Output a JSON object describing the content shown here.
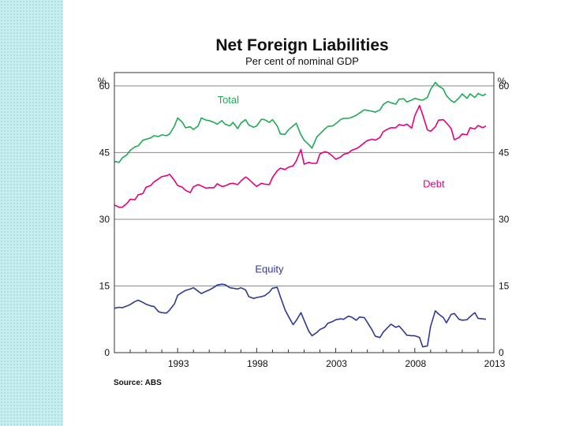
{
  "chart_data": {
    "type": "line",
    "title": "Net Foreign Liabilities",
    "subtitle": "Per cent of nominal GDP",
    "ylabel_left": "%",
    "ylabel_right": "%",
    "ylim": [
      0,
      63
    ],
    "yticks": [
      0,
      15,
      30,
      45,
      60
    ],
    "xlim": [
      1989.0,
      2013.0
    ],
    "xticks": [
      1993,
      1998,
      2003,
      2008,
      2013
    ],
    "grid": true,
    "source": "Source: ABS",
    "colors": {
      "Total": "#1faa55",
      "Debt": "#e6007e",
      "Equity": "#2e3a96"
    },
    "series": [
      {
        "name": "Total",
        "color": "#1faa55",
        "x": [
          1989.0,
          1989.3,
          1989.5,
          1989.8,
          1990.0,
          1990.3,
          1990.5,
          1990.8,
          1991.0,
          1991.3,
          1991.5,
          1991.8,
          1992.0,
          1992.3,
          1992.5,
          1992.8,
          1993.0,
          1993.3,
          1993.5,
          1993.8,
          1994.0,
          1994.3,
          1994.5,
          1994.8,
          1995.0,
          1995.3,
          1995.5,
          1995.8,
          1996.0,
          1996.3,
          1996.5,
          1996.8,
          1997.0,
          1997.3,
          1997.5,
          1997.8,
          1998.0,
          1998.3,
          1998.5,
          1998.8,
          1999.0,
          1999.3,
          1999.5,
          1999.8,
          2000.0,
          2000.3,
          2000.5,
          2000.8,
          2001.0,
          2001.3,
          2001.5,
          2001.8,
          2002.0,
          2002.3,
          2002.5,
          2002.8,
          2003.0,
          2003.3,
          2003.5,
          2003.8,
          2004.0,
          2004.3,
          2004.5,
          2004.8,
          2005.0,
          2005.3,
          2005.5,
          2005.8,
          2006.0,
          2006.3,
          2006.5,
          2006.8,
          2007.0,
          2007.3,
          2007.5,
          2007.8,
          2008.0,
          2008.3,
          2008.5,
          2008.8,
          2009.0,
          2009.3,
          2009.5,
          2009.8,
          2010.0,
          2010.3,
          2010.5,
          2010.8,
          2011.0,
          2011.3,
          2011.5,
          2011.8,
          2012.0,
          2012.3,
          2012.5
        ],
        "values": [
          43,
          42.8,
          43.8,
          44.5,
          45.5,
          46.3,
          46.5,
          47.8,
          48,
          48.3,
          48.8,
          48.6,
          49,
          48.8,
          49.2,
          51,
          52.8,
          51.8,
          50.6,
          50.8,
          50.2,
          51,
          52.8,
          52.3,
          52.2,
          51.8,
          51.4,
          52.2,
          51.4,
          51,
          51.8,
          50.4,
          51.6,
          52.4,
          51.2,
          50.7,
          51,
          52.5,
          52.4,
          51.8,
          52.4,
          51,
          49.2,
          49.1,
          50.1,
          51,
          51.6,
          49,
          47.8,
          46.8,
          46,
          48.5,
          49.2,
          50.3,
          50.9,
          51,
          51.5,
          52.4,
          52.7,
          52.7,
          52.9,
          53.4,
          53.9,
          54.6,
          54.5,
          54.3,
          54.1,
          54.6,
          55.8,
          56.5,
          56.2,
          55.9,
          57,
          57.1,
          56.4,
          56.8,
          57.2,
          56.9,
          56.8,
          57.4,
          59.2,
          60.8,
          60,
          59.3,
          57.8,
          56.7,
          56.3,
          57.3,
          58.2,
          57.2,
          58.2,
          57.4,
          58.3,
          57.8,
          58.2
        ]
      },
      {
        "name": "Debt",
        "color": "#e6007e",
        "x": [
          1989.0,
          1989.3,
          1989.5,
          1989.8,
          1990.0,
          1990.3,
          1990.5,
          1990.8,
          1991.0,
          1991.3,
          1991.5,
          1991.8,
          1992.0,
          1992.3,
          1992.5,
          1992.8,
          1993.0,
          1993.3,
          1993.5,
          1993.8,
          1994.0,
          1994.3,
          1994.5,
          1994.8,
          1995.0,
          1995.3,
          1995.5,
          1995.8,
          1996.0,
          1996.3,
          1996.5,
          1996.8,
          1997.0,
          1997.3,
          1997.5,
          1997.8,
          1998.0,
          1998.3,
          1998.5,
          1998.8,
          1999.0,
          1999.3,
          1999.5,
          1999.8,
          2000.0,
          2000.3,
          2000.5,
          2000.8,
          2001.0,
          2001.3,
          2001.5,
          2001.8,
          2002.0,
          2002.3,
          2002.5,
          2002.8,
          2003.0,
          2003.3,
          2003.5,
          2003.8,
          2004.0,
          2004.3,
          2004.5,
          2004.8,
          2005.0,
          2005.3,
          2005.5,
          2005.8,
          2006.0,
          2006.3,
          2006.5,
          2006.8,
          2007.0,
          2007.3,
          2007.5,
          2007.8,
          2008.0,
          2008.3,
          2008.5,
          2008.8,
          2009.0,
          2009.3,
          2009.5,
          2009.8,
          2010.0,
          2010.3,
          2010.5,
          2010.8,
          2011.0,
          2011.3,
          2011.5,
          2011.8,
          2012.0,
          2012.3,
          2012.5
        ],
        "values": [
          33.2,
          32.7,
          32.7,
          33.6,
          34.5,
          34.4,
          35.5,
          35.8,
          37.2,
          37.6,
          38.4,
          39.1,
          39.6,
          39.8,
          40.1,
          38.7,
          37.6,
          37.2,
          36.5,
          36,
          37.3,
          37.8,
          37.5,
          37,
          37.1,
          37.1,
          38,
          37.4,
          37.5,
          38,
          38.1,
          37.8,
          38.6,
          39.5,
          39,
          38,
          37.4,
          38.1,
          37.9,
          37.8,
          39.4,
          40.9,
          41.5,
          41.2,
          41.7,
          42,
          43.1,
          45.7,
          42.4,
          42.8,
          42.6,
          42.6,
          44.7,
          45.2,
          45,
          44.2,
          43.5,
          44,
          44.6,
          44.9,
          45.5,
          45.9,
          46.3,
          47.2,
          47.7,
          48,
          47.8,
          48.4,
          49.7,
          50.3,
          50.6,
          50.6,
          51.3,
          51.1,
          51.4,
          50.5,
          53.3,
          55.6,
          53.5,
          50.1,
          49.8,
          50.8,
          52.3,
          52.4,
          51.7,
          50.4,
          47.9,
          48.4,
          49.2,
          49,
          50.6,
          50.3,
          51.1,
          50.6,
          51
        ]
      },
      {
        "name": "Equity",
        "color": "#2e3a96",
        "x": [
          1989.0,
          1989.3,
          1989.5,
          1989.8,
          1990.0,
          1990.3,
          1990.5,
          1990.8,
          1991.0,
          1991.3,
          1991.5,
          1991.8,
          1992.0,
          1992.3,
          1992.5,
          1992.8,
          1993.0,
          1993.3,
          1993.5,
          1993.8,
          1994.0,
          1994.3,
          1994.5,
          1994.8,
          1995.0,
          1995.3,
          1995.5,
          1995.8,
          1996.0,
          1996.3,
          1996.5,
          1996.8,
          1997.0,
          1997.3,
          1997.5,
          1997.8,
          1998.0,
          1998.3,
          1998.5,
          1998.8,
          1999.0,
          1999.3,
          1999.5,
          1999.8,
          2000.0,
          2000.3,
          2000.5,
          2000.8,
          2001.0,
          2001.3,
          2001.5,
          2001.8,
          2002.0,
          2002.3,
          2002.5,
          2002.8,
          2003.0,
          2003.3,
          2003.5,
          2003.8,
          2004.0,
          2004.3,
          2004.5,
          2004.8,
          2005.0,
          2005.3,
          2005.5,
          2005.8,
          2006.0,
          2006.3,
          2006.5,
          2006.8,
          2007.0,
          2007.3,
          2007.5,
          2007.8,
          2008.0,
          2008.3,
          2008.5,
          2008.8,
          2009.0,
          2009.3,
          2009.5,
          2009.8,
          2010.0,
          2010.3,
          2010.5,
          2010.8,
          2011.0,
          2011.3,
          2011.5,
          2011.8,
          2012.0,
          2012.3,
          2012.5
        ],
        "values": [
          10,
          10.2,
          10.1,
          10.5,
          10.8,
          11.5,
          11.8,
          11.3,
          10.9,
          10.5,
          10.4,
          9.2,
          9,
          8.9,
          9.6,
          11,
          12.9,
          13.6,
          14,
          14.3,
          14.6,
          13.8,
          13.3,
          13.8,
          14.1,
          14.7,
          15.2,
          15.4,
          15.3,
          14.6,
          14.5,
          14.3,
          14.6,
          14.1,
          12.6,
          12.2,
          12.4,
          12.6,
          12.8,
          13.6,
          14.5,
          14.7,
          12.6,
          9.6,
          8.2,
          6.3,
          7.2,
          9,
          7.3,
          4.8,
          3.8,
          4.5,
          5.2,
          5.7,
          6.6,
          7,
          7.4,
          7.6,
          7.5,
          8.2,
          8,
          7.3,
          8,
          7.9,
          6.8,
          5.1,
          3.7,
          3.4,
          4.6,
          5.7,
          6.4,
          5.7,
          6,
          4.8,
          3.9,
          3.8,
          3.8,
          3.4,
          1.3,
          1.5,
          5.9,
          9.4,
          8.7,
          7.9,
          6.7,
          8.6,
          8.8,
          7.5,
          7.3,
          7.4,
          8.1,
          9,
          7.7,
          7.6,
          7.5
        ]
      }
    ],
    "annotations": [
      {
        "text": "Total",
        "series": "Total",
        "x": 1996.2,
        "y": 56.1
      },
      {
        "text": "Debt",
        "series": "Debt",
        "x": 2009.2,
        "y": 37.2
      },
      {
        "text": "Equity",
        "series": "Equity",
        "x": 1998.8,
        "y": 18.0
      }
    ]
  }
}
